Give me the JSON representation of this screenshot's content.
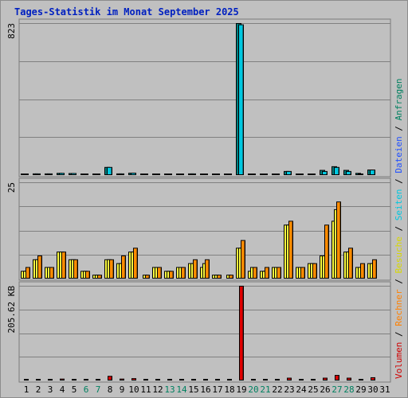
{
  "chart_data": {
    "type": "bar",
    "title": "Tages-Statistik im Monat September 2025",
    "categories": [
      "1",
      "2",
      "3",
      "4",
      "5",
      "6",
      "7",
      "8",
      "9",
      "10",
      "11",
      "12",
      "13",
      "14",
      "15",
      "16",
      "17",
      "18",
      "19",
      "20",
      "21",
      "22",
      "23",
      "24",
      "25",
      "26",
      "27",
      "28",
      "29",
      "30",
      "31"
    ],
    "weekend_days": [
      "6",
      "7",
      "13",
      "14",
      "20",
      "21",
      "27",
      "28"
    ],
    "panels": [
      {
        "id": "top",
        "max_label": "823",
        "ymax": 823,
        "series": [
          {
            "name": "Anfragen",
            "color": "#008080",
            "values": [
              6,
              9,
              9,
              12,
              11,
              4,
              5,
              44,
              9,
              13,
              6,
              6,
              6,
              6,
              9,
              6,
              5,
              5,
              823,
              6,
              6,
              5,
              22,
              6,
              6,
              28,
              48,
              28,
              12,
              30,
              0
            ]
          },
          {
            "name": "Dateien",
            "color": "#00c8e0",
            "values": [
              6,
              9,
              9,
              12,
              11,
              4,
              5,
              44,
              9,
              13,
              6,
              6,
              6,
              6,
              9,
              6,
              5,
              5,
              816,
              6,
              6,
              5,
              22,
              6,
              6,
              22,
              44,
              22,
              7,
              30,
              0
            ]
          }
        ]
      },
      {
        "id": "middle",
        "max_label": "25",
        "ymax": 25,
        "series": [
          {
            "name": "Seiten",
            "color": "#ffff40",
            "values": [
              2,
              5,
              3,
              7,
              5,
              2,
              1,
              5,
              4,
              7,
              0,
              3,
              2,
              3,
              4,
              3,
              1,
              0,
              8,
              2,
              2,
              3,
              14,
              3,
              4,
              6,
              15,
              7,
              3,
              4,
              0
            ]
          },
          {
            "name": "Besuche",
            "color": "#ffff40",
            "values": [
              2,
              5,
              3,
              7,
              5,
              2,
              1,
              5,
              4,
              7,
              1,
              3,
              2,
              3,
              4,
              4,
              1,
              1,
              8,
              3,
              2,
              3,
              14,
              3,
              4,
              6,
              18,
              7,
              3,
              4,
              0
            ]
          },
          {
            "name": "Rechner",
            "color": "#ff8c00",
            "values": [
              3,
              6,
              3,
              7,
              5,
              2,
              1,
              5,
              6,
              8,
              1,
              3,
              2,
              3,
              5,
              5,
              1,
              1,
              10,
              3,
              3,
              3,
              15,
              3,
              4,
              14,
              20,
              8,
              4,
              5,
              0
            ]
          }
        ]
      },
      {
        "id": "bottom",
        "max_label": "205.62 KB",
        "ymax": 205.62,
        "series": [
          {
            "name": "Volumen",
            "color": "#e00000",
            "values": [
              2,
              3,
              3,
              4,
              2,
              1,
              1,
              10,
              4,
              5,
              1,
              1,
              1,
              3,
              3,
              3,
              1,
              1,
              205.62,
              1,
              1,
              1,
              6,
              1,
              3,
              6,
              12,
              6,
              2,
              7,
              0
            ]
          }
        ]
      }
    ],
    "legend_order": [
      "Volumen",
      "Rechner",
      "Besuche",
      "Seiten",
      "Dateien",
      "Anfragen"
    ],
    "legend_colors": {
      "Volumen": "#d00000",
      "Rechner": "#ff8000",
      "Besuche": "#d8d800",
      "Seiten": "#00c8e0",
      "Dateien": "#2050ff",
      "Anfragen": "#008060"
    },
    "legend_separator": " / ",
    "colors": {
      "title": "#0020c0",
      "weekday_label": "#000000",
      "weekend_label": "#008060",
      "grid": "#808080",
      "panel_bg": "#c0c0c0"
    }
  }
}
